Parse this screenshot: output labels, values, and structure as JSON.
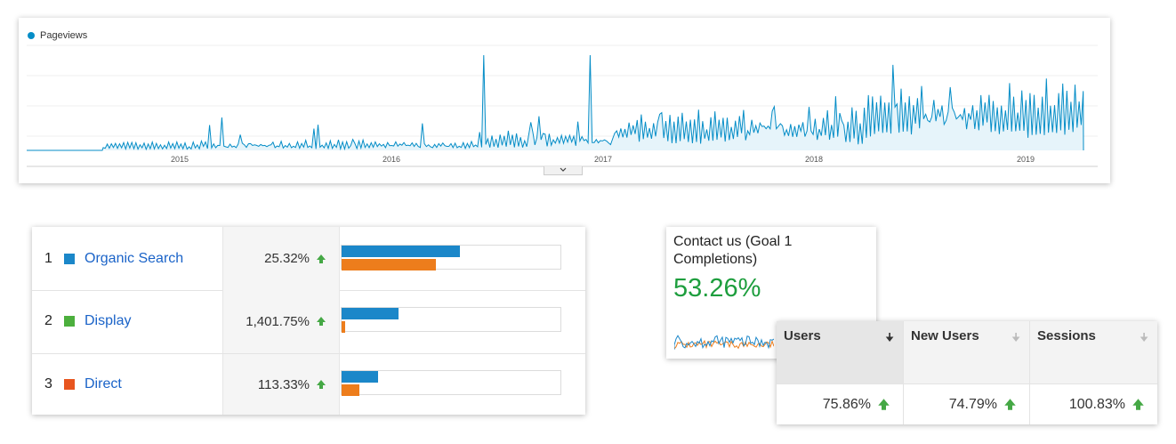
{
  "timeline": {
    "legend": "Pageviews",
    "color": "#058dc7",
    "fill": "#e6f4fa",
    "years": [
      "2015",
      "2016",
      "2017",
      "2018",
      "2019"
    ],
    "expand_icon": "chevron-down-icon"
  },
  "channels": {
    "colors": {
      "current": "#1b87c9",
      "previous": "#ed7d1c"
    },
    "rows": [
      {
        "rank": "1",
        "name": "Organic Search",
        "swatch": "#1b87c9",
        "change": "25.32%",
        "current": 0.54,
        "previous": 0.43
      },
      {
        "rank": "2",
        "name": "Display",
        "swatch": "#4caf3d",
        "change": "1,401.75%",
        "current": 0.26,
        "previous": 0.017
      },
      {
        "rank": "3",
        "name": "Direct",
        "swatch": "#e8551f",
        "change": "113.33%",
        "current": 0.165,
        "previous": 0.08
      }
    ],
    "trend_icon": "up-arrow-icon"
  },
  "goal": {
    "title": "Contact us (Goal 1 Completions)",
    "value": "53.26%",
    "value_color": "#1e9e3e"
  },
  "metrics": {
    "columns": [
      {
        "header": "Users",
        "value": "75.86%",
        "sorted": true
      },
      {
        "header": "New Users",
        "value": "74.79%",
        "sorted": false
      },
      {
        "header": "Sessions",
        "value": "100.83%",
        "sorted": false
      }
    ],
    "trend_icon": "up-arrow-icon"
  }
}
